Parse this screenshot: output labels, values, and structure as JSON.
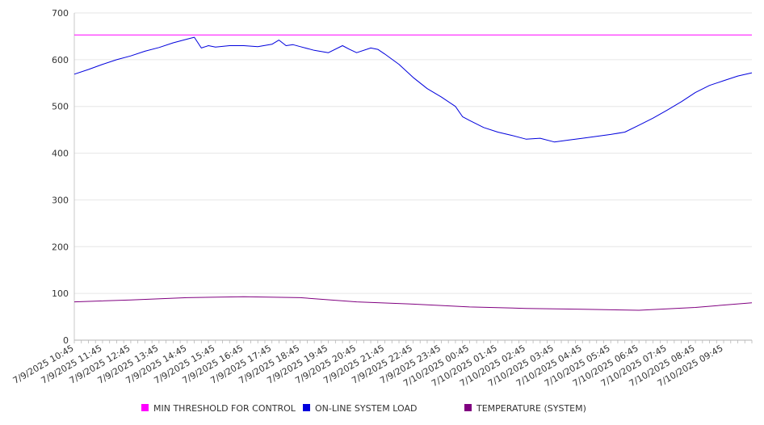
{
  "chart_data": {
    "type": "line",
    "title": "",
    "xlabel": "",
    "ylabel": "",
    "ylim": [
      0,
      700
    ],
    "yticks": [
      0,
      100,
      200,
      300,
      400,
      500,
      600,
      700
    ],
    "x_tick_labels": [
      "7/9/2025 10:45",
      "7/9/2025 11:45",
      "7/9/2025 12:45",
      "7/9/2025 13:45",
      "7/9/2025 14:45",
      "7/9/2025 15:45",
      "7/9/2025 16:45",
      "7/9/2025 17:45",
      "7/9/2025 18:45",
      "7/9/2025 19:45",
      "7/9/2025 20:45",
      "7/9/2025 21:45",
      "7/9/2025 22:45",
      "7/9/2025 23:45",
      "7/10/2025 00:45",
      "7/10/2025 01:45",
      "7/10/2025 02:45",
      "7/10/2025 03:45",
      "7/10/2025 04:45",
      "7/10/2025 05:45",
      "7/10/2025 06:45",
      "7/10/2025 07:45",
      "7/10/2025 08:45",
      "7/10/2025 09:45"
    ],
    "x_start": "7/9/2025 10:45",
    "x_end": "7/10/2025 10:45",
    "grid": true,
    "legend_position": "bottom",
    "series": [
      {
        "name": "MIN THRESHOLD FOR CONTROL",
        "color": "#ff00ff",
        "x": [
          "7/9/2025 10:45",
          "7/10/2025 10:45"
        ],
        "values": [
          653,
          653
        ]
      },
      {
        "name": "ON-LINE SYSTEM LOAD",
        "color": "#0000dd",
        "x": [
          "7/9/2025 10:45",
          "7/9/2025 11:15",
          "7/9/2025 11:45",
          "7/9/2025 12:15",
          "7/9/2025 12:45",
          "7/9/2025 13:15",
          "7/9/2025 13:45",
          "7/9/2025 14:15",
          "7/9/2025 14:45",
          "7/9/2025 15:00",
          "7/9/2025 15:15",
          "7/9/2025 15:30",
          "7/9/2025 15:45",
          "7/9/2025 16:15",
          "7/9/2025 16:45",
          "7/9/2025 17:15",
          "7/9/2025 17:45",
          "7/9/2025 18:00",
          "7/9/2025 18:15",
          "7/9/2025 18:30",
          "7/9/2025 18:45",
          "7/9/2025 19:15",
          "7/9/2025 19:45",
          "7/9/2025 20:15",
          "7/9/2025 20:30",
          "7/9/2025 20:45",
          "7/9/2025 21:15",
          "7/9/2025 21:30",
          "7/9/2025 21:45",
          "7/9/2025 22:15",
          "7/9/2025 22:45",
          "7/9/2025 23:15",
          "7/9/2025 23:45",
          "7/10/2025 00:15",
          "7/10/2025 00:30",
          "7/10/2025 00:45",
          "7/10/2025 01:15",
          "7/10/2025 01:45",
          "7/10/2025 02:15",
          "7/10/2025 02:45",
          "7/10/2025 03:15",
          "7/10/2025 03:45",
          "7/10/2025 04:15",
          "7/10/2025 04:45",
          "7/10/2025 05:15",
          "7/10/2025 05:45",
          "7/10/2025 06:15",
          "7/10/2025 06:45",
          "7/10/2025 07:15",
          "7/10/2025 07:45",
          "7/10/2025 08:15",
          "7/10/2025 08:45",
          "7/10/2025 09:15",
          "7/10/2025 09:45",
          "7/10/2025 10:15",
          "7/10/2025 10:45"
        ],
        "values": [
          569,
          579,
          590,
          600,
          608,
          618,
          626,
          636,
          644,
          648,
          625,
          630,
          627,
          630,
          630,
          628,
          633,
          642,
          630,
          632,
          628,
          620,
          615,
          630,
          622,
          615,
          625,
          622,
          612,
          590,
          562,
          538,
          520,
          500,
          478,
          470,
          455,
          445,
          438,
          430,
          432,
          424,
          428,
          432,
          436,
          440,
          445,
          460,
          475,
          492,
          510,
          530,
          545,
          555,
          565,
          572
        ]
      },
      {
        "name": "TEMPERATURE (SYSTEM)",
        "color": "#800080",
        "x": [
          "7/9/2025 10:45",
          "7/9/2025 12:45",
          "7/9/2025 14:45",
          "7/9/2025 16:45",
          "7/9/2025 18:45",
          "7/9/2025 20:45",
          "7/9/2025 22:45",
          "7/10/2025 00:45",
          "7/10/2025 02:45",
          "7/10/2025 04:45",
          "7/10/2025 06:45",
          "7/10/2025 08:45",
          "7/10/2025 10:45"
        ],
        "values": [
          82,
          86,
          91,
          93,
          91,
          82,
          77,
          71,
          68,
          66,
          64,
          70,
          80
        ]
      }
    ]
  }
}
